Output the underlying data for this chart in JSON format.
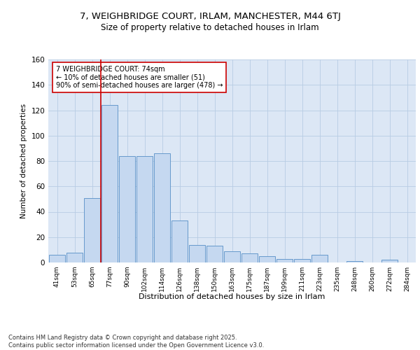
{
  "title1": "7, WEIGHBRIDGE COURT, IRLAM, MANCHESTER, M44 6TJ",
  "title2": "Size of property relative to detached houses in Irlam",
  "xlabel": "Distribution of detached houses by size in Irlam",
  "ylabel": "Number of detached properties",
  "categories": [
    "41sqm",
    "53sqm",
    "65sqm",
    "77sqm",
    "90sqm",
    "102sqm",
    "114sqm",
    "126sqm",
    "138sqm",
    "150sqm",
    "163sqm",
    "175sqm",
    "187sqm",
    "199sqm",
    "211sqm",
    "223sqm",
    "235sqm",
    "248sqm",
    "260sqm",
    "272sqm",
    "284sqm"
  ],
  "values": [
    6,
    8,
    51,
    124,
    84,
    84,
    86,
    33,
    14,
    13,
    9,
    7,
    5,
    3,
    3,
    6,
    0,
    1,
    0,
    2,
    0
  ],
  "bar_color": "#c5d8f0",
  "bar_edge_color": "#6699cc",
  "vline_color": "#cc0000",
  "annotation_text": "7 WEIGHBRIDGE COURT: 74sqm\n← 10% of detached houses are smaller (51)\n90% of semi-detached houses are larger (478) →",
  "annotation_box_color": "#ffffff",
  "annotation_box_edge": "#cc0000",
  "footer": "Contains HM Land Registry data © Crown copyright and database right 2025.\nContains public sector information licensed under the Open Government Licence v3.0.",
  "background_color": "#dce7f5",
  "ylim": [
    0,
    160
  ],
  "yticks": [
    0,
    20,
    40,
    60,
    80,
    100,
    120,
    140,
    160
  ]
}
